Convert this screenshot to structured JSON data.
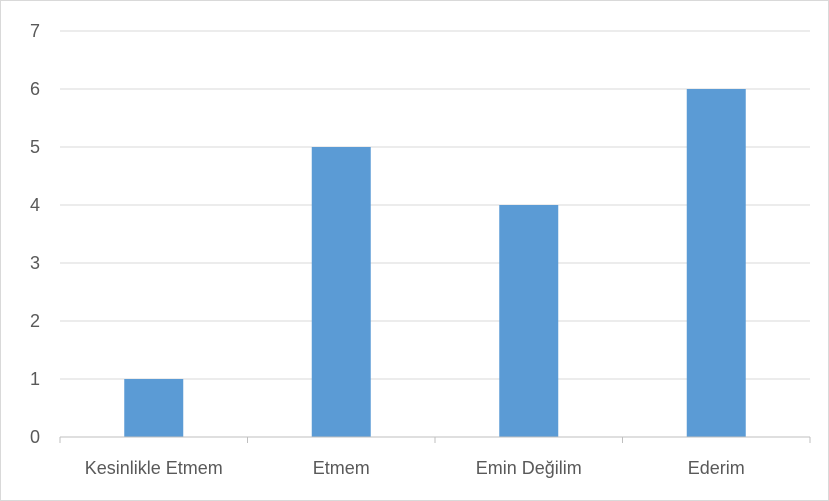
{
  "chart_data": {
    "type": "bar",
    "categories": [
      "Kesinlikle Etmem",
      "Etmem",
      "Emin Değilim",
      "Ederim"
    ],
    "values": [
      1,
      5,
      4,
      6
    ],
    "title": "",
    "xlabel": "",
    "ylabel": "",
    "ylim": [
      0,
      7
    ],
    "yticks": [
      "0",
      "1",
      "2",
      "3",
      "4",
      "5",
      "6",
      "7"
    ],
    "grid": true,
    "legend": "none",
    "bar_color": "#5B9BD5"
  }
}
